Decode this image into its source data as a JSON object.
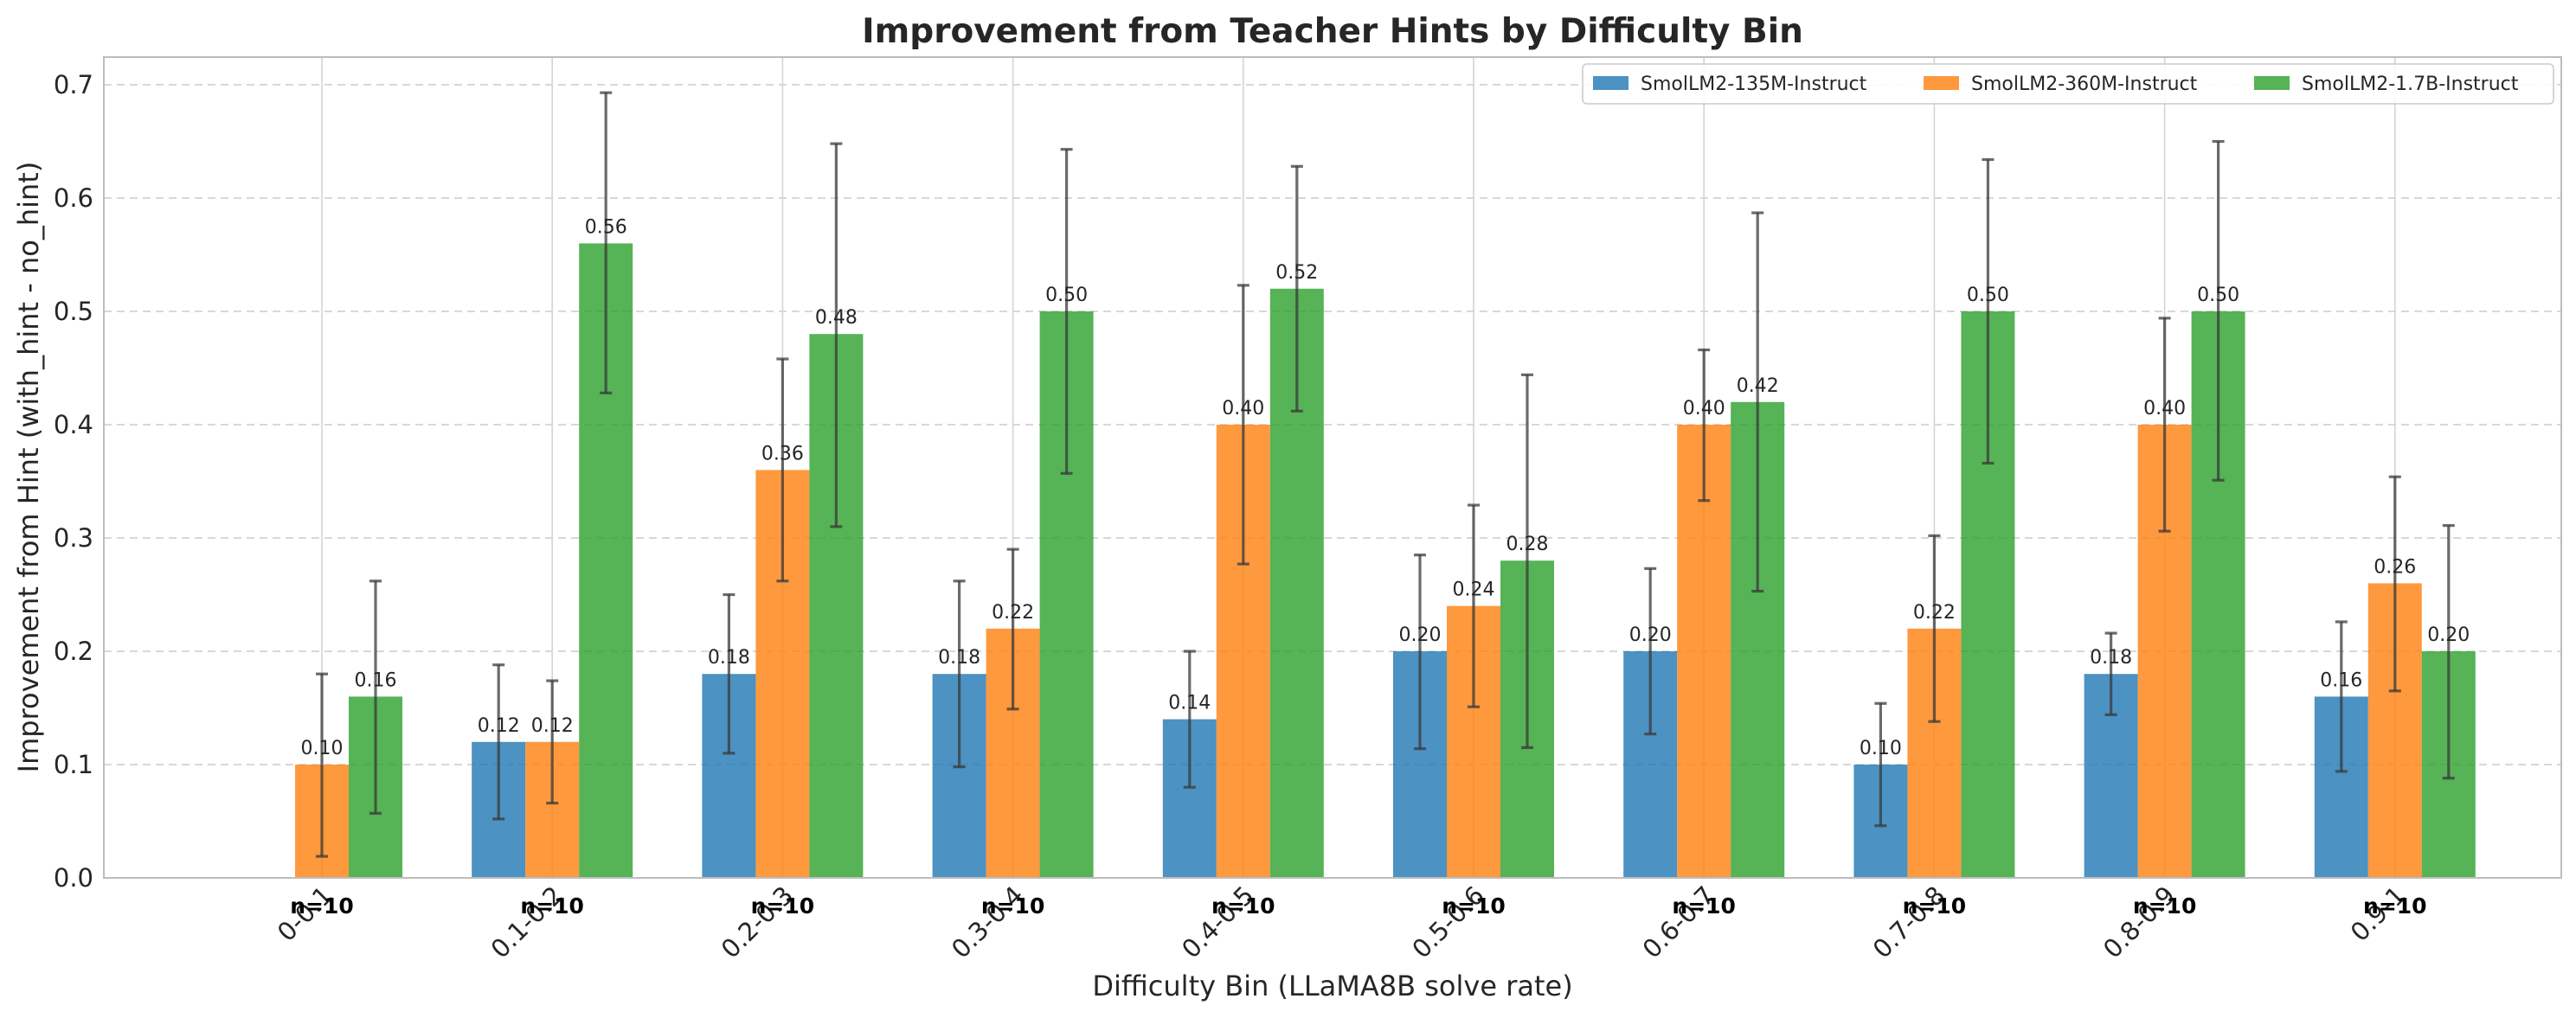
{
  "chart_data": {
    "type": "bar",
    "title": "Improvement from Teacher Hints by Difficulty Bin",
    "xlabel": "Difficulty Bin (LLaMA8B solve rate)",
    "ylabel": "Improvement from Hint (with_hint - no_hint)",
    "ylim": [
      0,
      0.72
    ],
    "yticks": [
      "0.0",
      "0.1",
      "0.2",
      "0.3",
      "0.4",
      "0.5",
      "0.6",
      "0.7"
    ],
    "grid": true,
    "legend_position": "top-right",
    "categories": [
      "0-0.1",
      "0.1-0.2",
      "0.2-0.3",
      "0.3-0.4",
      "0.4-0.5",
      "0.5-0.6",
      "0.6-0.7",
      "0.7-0.8",
      "0.8-0.9",
      "0.9-1"
    ],
    "n_labels": [
      "n=10",
      "n=10",
      "n=10",
      "n=10",
      "n=10",
      "n=10",
      "n=10",
      "n=10",
      "n=10",
      "n=10"
    ],
    "series": [
      {
        "name": "SmolLM2-135M-Instruct",
        "color": "#1f77b4",
        "values": [
          null,
          0.12,
          0.18,
          0.18,
          0.14,
          0.2,
          0.2,
          0.1,
          0.18,
          0.16
        ],
        "labels": [
          "",
          "0.12",
          "0.18",
          "0.18",
          "0.14",
          "0.20",
          "0.20",
          "0.10",
          "0.18",
          "0.16"
        ],
        "err_low": [
          null,
          0.052,
          0.11,
          0.098,
          0.08,
          0.114,
          0.127,
          0.046,
          0.144,
          0.094
        ],
        "err_high": [
          null,
          0.188,
          0.25,
          0.262,
          0.2,
          0.285,
          0.273,
          0.154,
          0.216,
          0.226
        ]
      },
      {
        "name": "SmolLM2-360M-Instruct",
        "color": "#ff7f0e",
        "values": [
          0.1,
          0.12,
          0.36,
          0.22,
          0.4,
          0.24,
          0.4,
          0.22,
          0.4,
          0.26
        ],
        "labels": [
          "0.10",
          "0.12",
          "0.36",
          "0.22",
          "0.40",
          "0.24",
          "0.40",
          "0.22",
          "0.40",
          "0.26"
        ],
        "err_low": [
          0.019,
          0.066,
          0.262,
          0.149,
          0.277,
          0.151,
          0.333,
          0.138,
          0.306,
          0.165
        ],
        "err_high": [
          0.18,
          0.174,
          0.458,
          0.29,
          0.523,
          0.329,
          0.466,
          0.302,
          0.494,
          0.354
        ]
      },
      {
        "name": "SmolLM2-1.7B-Instruct",
        "color": "#2ca02c",
        "values": [
          0.16,
          0.56,
          0.48,
          0.5,
          0.52,
          0.28,
          0.42,
          0.5,
          0.5,
          0.2
        ],
        "labels": [
          "0.16",
          "0.56",
          "0.48",
          "0.50",
          "0.52",
          "0.28",
          "0.42",
          "0.50",
          "0.50",
          "0.20"
        ],
        "err_low": [
          0.057,
          0.428,
          0.31,
          0.357,
          0.412,
          0.115,
          0.253,
          0.366,
          0.351,
          0.088
        ],
        "err_high": [
          0.262,
          0.693,
          0.648,
          0.643,
          0.628,
          0.444,
          0.587,
          0.634,
          0.65,
          0.311
        ]
      }
    ]
  }
}
